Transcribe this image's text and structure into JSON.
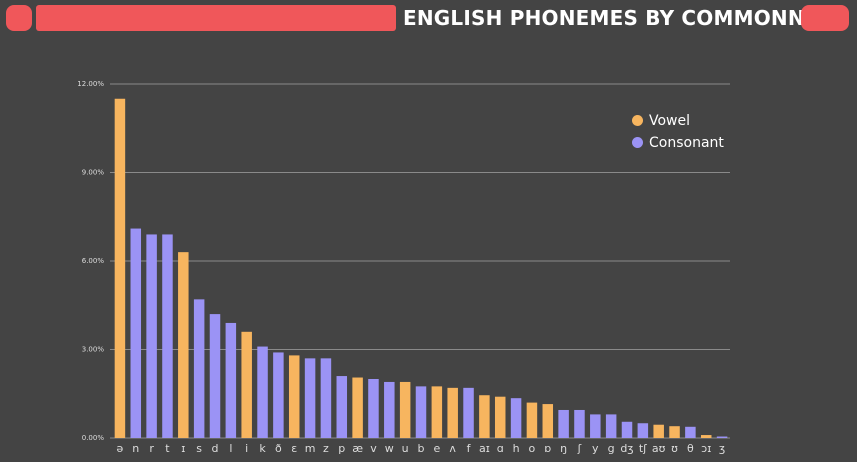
{
  "chart_data": {
    "type": "bar",
    "title": "ENGLISH PHONEMES BY COMMONNESS",
    "ylim": [
      0,
      12
    ],
    "yticks": [
      0,
      3,
      6,
      9,
      12
    ],
    "ytick_labels": [
      "0.00%",
      "3.00%",
      "6.00%",
      "9.00%",
      "12.00%"
    ],
    "grid": true,
    "legend_position": "top-right",
    "legend": [
      {
        "name": "Vowel",
        "color": "#f7b55f"
      },
      {
        "name": "Consonant",
        "color": "#9b93f5"
      }
    ],
    "categories": [
      "ə",
      "n",
      "r",
      "t",
      "ɪ",
      "s",
      "d",
      "l",
      "i",
      "k",
      "ð",
      "ɛ",
      "m",
      "z",
      "p",
      "æ",
      "v",
      "w",
      "u",
      "b",
      "e",
      "ʌ",
      "f",
      "aɪ",
      "ɑ",
      "h",
      "o",
      "ɒ",
      "ŋ",
      "ʃ",
      "y",
      "g",
      "dʒ",
      "tʃ",
      "aʊ",
      "ʊ",
      "θ",
      "ɔɪ",
      "ʒ"
    ],
    "types": [
      "vowel",
      "consonant",
      "consonant",
      "consonant",
      "vowel",
      "consonant",
      "consonant",
      "consonant",
      "vowel",
      "consonant",
      "consonant",
      "vowel",
      "consonant",
      "consonant",
      "consonant",
      "vowel",
      "consonant",
      "consonant",
      "vowel",
      "consonant",
      "vowel",
      "vowel",
      "consonant",
      "vowel",
      "vowel",
      "consonant",
      "vowel",
      "vowel",
      "consonant",
      "consonant",
      "consonant",
      "consonant",
      "consonant",
      "consonant",
      "vowel",
      "vowel",
      "consonant",
      "vowel",
      "consonant"
    ],
    "values": [
      11.5,
      7.1,
      6.9,
      6.9,
      6.3,
      4.7,
      4.2,
      3.9,
      3.6,
      3.1,
      2.9,
      2.8,
      2.7,
      2.7,
      2.1,
      2.05,
      2.0,
      1.9,
      1.9,
      1.75,
      1.75,
      1.7,
      1.7,
      1.45,
      1.4,
      1.35,
      1.2,
      1.15,
      0.95,
      0.95,
      0.8,
      0.8,
      0.55,
      0.5,
      0.45,
      0.4,
      0.38,
      0.1,
      0.05
    ]
  }
}
